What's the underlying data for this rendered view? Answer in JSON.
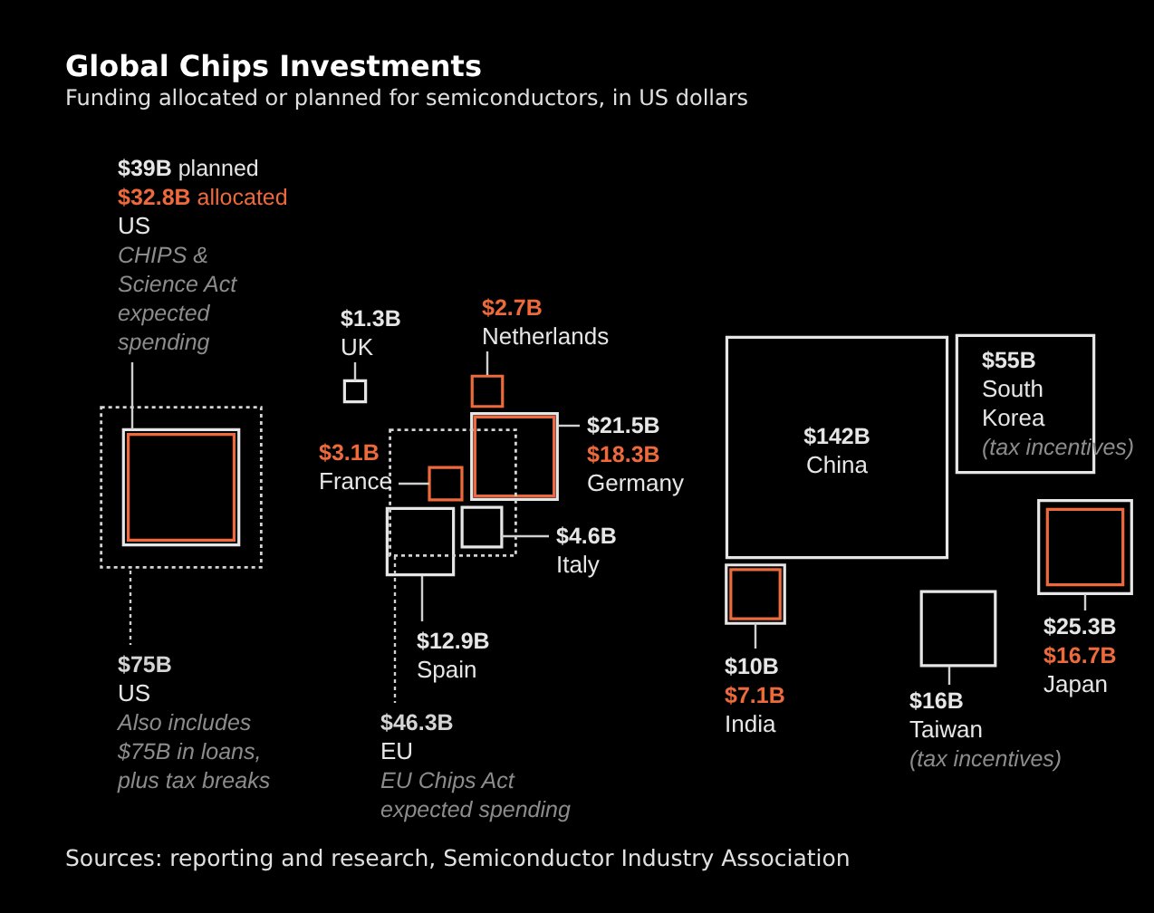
{
  "chart_data": {
    "type": "other",
    "title": "Global Chips Investments",
    "subtitle": "Funding allocated or planned for semiconductors, in US dollars",
    "categories": [
      "US",
      "UK",
      "Netherlands",
      "France",
      "Germany",
      "Italy",
      "Spain",
      "EU",
      "China",
      "India",
      "Taiwan",
      "South Korea",
      "Japan",
      "US"
    ],
    "series": [
      {
        "color": "#e6e6e6",
        "values": [
          39,
          1.3,
          null,
          null,
          21.5,
          4.6,
          12.9,
          null,
          142,
          10,
          16,
          55,
          25.3,
          null
        ],
        "value_labels": [
          "$39B planned",
          "$1.3B",
          null,
          null,
          "$21.5B",
          "$4.6B",
          "$12.9B",
          null,
          "$142B",
          "$10B",
          "$16B",
          "$55B",
          "$25.3B",
          null
        ]
      },
      {
        "color": "#ee6a3c",
        "values": [
          32.8,
          null,
          2.7,
          3.1,
          18.3,
          null,
          null,
          null,
          null,
          7.1,
          null,
          null,
          16.7,
          null
        ],
        "value_labels": [
          "$32.8B allocated",
          null,
          "$2.7B",
          "$3.1B",
          "$18.3B",
          null,
          null,
          null,
          null,
          "$7.1B",
          null,
          null,
          "$16.7B",
          null
        ]
      },
      {
        "color": "#d4d4d4",
        "line_style": "dotted",
        "values": [
          null,
          null,
          null,
          null,
          null,
          null,
          null,
          46.3,
          null,
          null,
          null,
          null,
          null,
          75
        ],
        "value_labels": [
          null,
          null,
          null,
          null,
          null,
          null,
          null,
          "$46.3B",
          null,
          null,
          null,
          null,
          null,
          "$75B"
        ]
      }
    ],
    "annotations": [
      "CHIPS & Science Act expected spending",
      "Also includes $75B in loans, plus tax breaks",
      "EU Chips Act expected spending",
      "(tax incentives)",
      "(tax incentives)",
      "Sources: reporting and research, Semiconductor Industry Association"
    ]
  }
}
